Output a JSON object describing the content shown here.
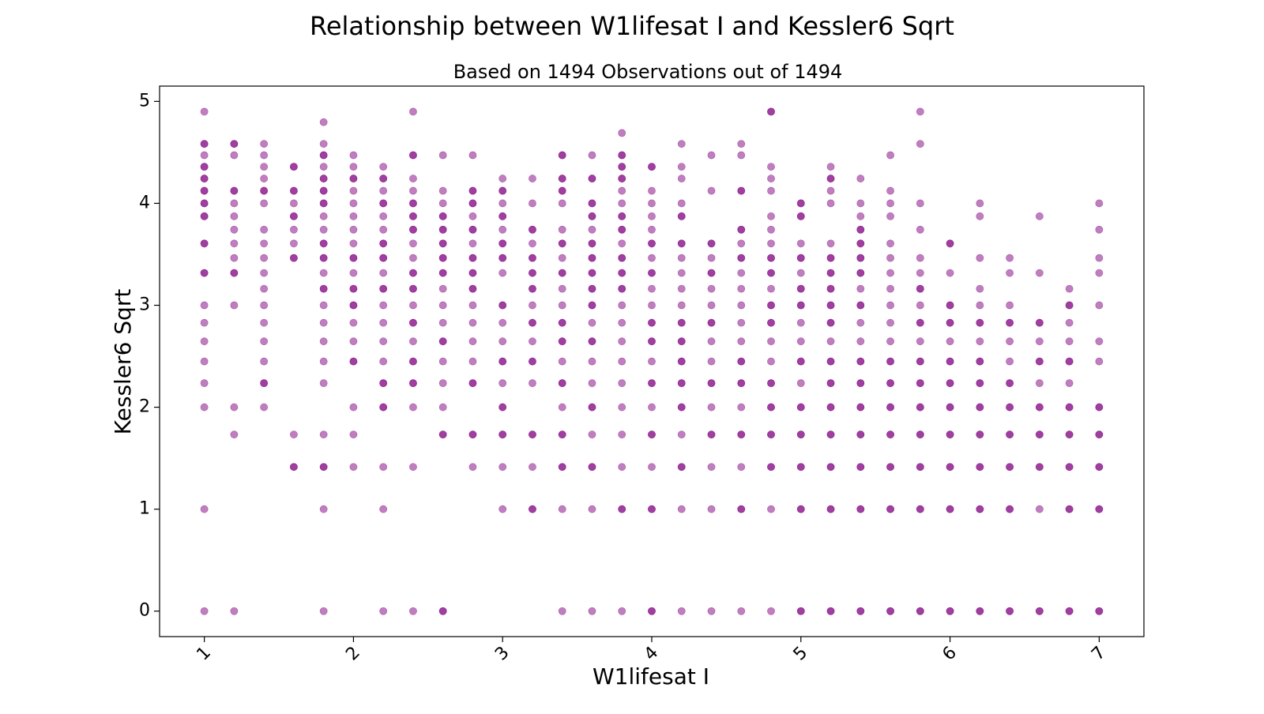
{
  "chart_data": {
    "type": "scatter",
    "title": "Relationship between W1lifesat I and Kessler6 Sqrt",
    "subtitle": "Based on 1494 Observations out of 1494",
    "xlabel": "W1lifesat I",
    "ylabel": "Kessler6 Sqrt",
    "xlim": [
      0.7,
      7.3
    ],
    "ylim": [
      -0.25,
      5.15
    ],
    "xticks": [
      1,
      2,
      3,
      4,
      5,
      6,
      7
    ],
    "yticks": [
      0,
      1,
      2,
      3,
      4,
      5
    ],
    "xtick_labels": [
      "1",
      "2",
      "3",
      "4",
      "5",
      "6",
      "7"
    ],
    "ytick_labels": [
      "0",
      "1",
      "2",
      "3",
      "4",
      "5"
    ],
    "x_tick_rotation": "45 degrees",
    "grid": false,
    "legend": "none",
    "marker_color": "#800080",
    "marker_alpha": 0.5,
    "columns": [
      {
        "x": 1.0,
        "y": [
          0,
          1,
          2,
          2.236,
          2.449,
          2.646,
          2.828,
          3,
          3.317,
          3.317,
          3.606,
          3.606,
          3.873,
          3.873,
          4,
          4,
          4.123,
          4.123,
          4.243,
          4.243,
          4.359,
          4.359,
          4.472,
          4.583,
          4.583,
          4.899
        ]
      },
      {
        "x": 1.2,
        "y": [
          0,
          1.732,
          2,
          3,
          3.317,
          3.317,
          3.464,
          3.606,
          3.742,
          3.873,
          4,
          4.123,
          4.123,
          4.472,
          4.583,
          4.583
        ]
      },
      {
        "x": 1.4,
        "y": [
          2,
          2.236,
          2.236,
          2.449,
          2.646,
          2.828,
          3,
          3.162,
          3.317,
          3.464,
          3.606,
          3.742,
          4,
          4.123,
          4.123,
          4.243,
          4.359,
          4.472,
          4.583
        ]
      },
      {
        "x": 1.6,
        "y": [
          1.414,
          1.414,
          1.732,
          3.464,
          3.464,
          3.606,
          3.742,
          3.873,
          3.873,
          4,
          4.123,
          4.123,
          4.359,
          4.359
        ]
      },
      {
        "x": 1.8,
        "y": [
          0,
          1,
          1.414,
          1.414,
          1.732,
          2.236,
          2.449,
          2.646,
          2.828,
          3,
          3.162,
          3.162,
          3.317,
          3.464,
          3.464,
          3.606,
          3.606,
          3.742,
          3.873,
          4,
          4,
          4.123,
          4.123,
          4.243,
          4.243,
          4.359,
          4.472,
          4.472,
          4.583,
          4.796
        ]
      },
      {
        "x": 2.0,
        "y": [
          1.414,
          1.732,
          2,
          2.449,
          2.449,
          2.646,
          2.828,
          3,
          3,
          3.162,
          3.162,
          3.317,
          3.464,
          3.464,
          3.606,
          3.742,
          3.873,
          4,
          4.123,
          4.243,
          4.243,
          4.359,
          4.472
        ]
      },
      {
        "x": 2.2,
        "y": [
          0,
          1,
          1.414,
          2,
          2,
          2.236,
          2.236,
          2.449,
          2.646,
          2.828,
          3,
          3.162,
          3.162,
          3.317,
          3.464,
          3.464,
          3.606,
          3.606,
          3.742,
          3.873,
          4,
          4,
          4.123,
          4.243,
          4.243,
          4.359
        ]
      },
      {
        "x": 2.4,
        "y": [
          0,
          1.414,
          2,
          2.236,
          2.236,
          2.449,
          2.449,
          2.646,
          2.828,
          2.828,
          3,
          3.162,
          3.162,
          3.317,
          3.317,
          3.464,
          3.606,
          3.742,
          3.742,
          3.873,
          3.873,
          4,
          4,
          4.123,
          4.243,
          4.472,
          4.472,
          4.899
        ]
      },
      {
        "x": 2.6,
        "y": [
          0,
          0,
          1.732,
          1.732,
          2,
          2.236,
          2.449,
          2.646,
          2.646,
          2.828,
          3,
          3.162,
          3.317,
          3.317,
          3.464,
          3.464,
          3.606,
          3.606,
          3.742,
          3.742,
          3.873,
          3.873,
          4,
          4.123,
          4.472
        ]
      },
      {
        "x": 2.8,
        "y": [
          1.414,
          1.732,
          1.732,
          2.236,
          2.236,
          2.449,
          2.646,
          2.828,
          3,
          3.162,
          3.162,
          3.317,
          3.317,
          3.464,
          3.464,
          3.606,
          3.742,
          3.742,
          3.873,
          4,
          4,
          4.123,
          4.123,
          4.472
        ]
      },
      {
        "x": 3.0,
        "y": [
          1,
          1.414,
          1.732,
          1.732,
          2,
          2,
          2.236,
          2.449,
          2.449,
          2.646,
          2.828,
          3,
          3,
          3.317,
          3.464,
          3.464,
          3.606,
          3.606,
          3.742,
          3.873,
          3.873,
          4,
          4.123,
          4.123,
          4.243
        ]
      },
      {
        "x": 3.2,
        "y": [
          1,
          1,
          1.414,
          1.732,
          1.732,
          2.236,
          2.449,
          2.449,
          2.646,
          2.828,
          2.828,
          3,
          3.162,
          3.162,
          3.317,
          3.317,
          3.464,
          3.464,
          3.606,
          3.742,
          3.742,
          4,
          4.243
        ]
      },
      {
        "x": 3.4,
        "y": [
          0,
          1,
          1.414,
          1.414,
          1.732,
          1.732,
          2,
          2.236,
          2.236,
          2.449,
          2.646,
          2.646,
          2.828,
          2.828,
          3,
          3.162,
          3.317,
          3.317,
          3.464,
          3.606,
          3.606,
          3.742,
          4,
          4.123,
          4.123,
          4.243,
          4.243,
          4.472,
          4.472
        ]
      },
      {
        "x": 3.6,
        "y": [
          0,
          1,
          1.414,
          1.414,
          1.732,
          2,
          2,
          2.236,
          2.449,
          2.646,
          2.646,
          2.828,
          3,
          3,
          3.162,
          3.162,
          3.317,
          3.317,
          3.464,
          3.464,
          3.606,
          3.606,
          3.742,
          3.873,
          3.873,
          4,
          4,
          4.243,
          4.243,
          4.472
        ]
      },
      {
        "x": 3.8,
        "y": [
          0,
          1,
          1,
          1.414,
          1.732,
          2,
          2.236,
          2.449,
          2.646,
          2.828,
          3,
          3.162,
          3.162,
          3.317,
          3.317,
          3.464,
          3.464,
          3.606,
          3.742,
          3.742,
          3.873,
          3.873,
          4,
          4.123,
          4.243,
          4.243,
          4.359,
          4.359,
          4.472,
          4.472,
          4.69
        ]
      },
      {
        "x": 4.0,
        "y": [
          0,
          0,
          1,
          1,
          1.414,
          1.732,
          1.732,
          2,
          2.236,
          2.236,
          2.449,
          2.646,
          2.646,
          2.828,
          2.828,
          3,
          3.162,
          3.317,
          3.317,
          3.464,
          3.606,
          3.606,
          3.742,
          3.873,
          4,
          4.123,
          4.359,
          4.359
        ]
      },
      {
        "x": 4.2,
        "y": [
          0,
          1,
          1.414,
          1.414,
          1.732,
          2,
          2,
          2.236,
          2.236,
          2.449,
          2.449,
          2.646,
          2.646,
          2.828,
          2.828,
          3,
          3.162,
          3.317,
          3.464,
          3.606,
          3.606,
          3.873,
          3.873,
          4,
          4.243,
          4.359,
          4.583
        ]
      },
      {
        "x": 4.4,
        "y": [
          0,
          1,
          1.414,
          1.732,
          1.732,
          2,
          2.236,
          2.236,
          2.449,
          2.646,
          2.828,
          2.828,
          3,
          3.162,
          3.317,
          3.317,
          3.464,
          3.606,
          3.606,
          4.123,
          4.472
        ]
      },
      {
        "x": 4.6,
        "y": [
          0,
          1,
          1,
          1.414,
          1.732,
          1.732,
          2,
          2.236,
          2.236,
          2.449,
          2.449,
          2.646,
          2.828,
          3,
          3.162,
          3.317,
          3.464,
          3.464,
          3.606,
          3.742,
          3.742,
          4.123,
          4.123,
          4.472,
          4.583
        ]
      },
      {
        "x": 4.8,
        "y": [
          0,
          1,
          1.414,
          1.414,
          1.732,
          1.732,
          2,
          2,
          2.236,
          2.236,
          2.449,
          2.646,
          2.828,
          2.828,
          3,
          3,
          3.162,
          3.317,
          3.317,
          3.464,
          3.464,
          3.606,
          3.742,
          3.873,
          4.123,
          4.243,
          4.359,
          4.899,
          4.899
        ]
      },
      {
        "x": 5.0,
        "y": [
          0,
          0,
          1,
          1,
          1.414,
          1.414,
          1.732,
          1.732,
          2,
          2,
          2.236,
          2.449,
          2.449,
          2.646,
          2.828,
          3,
          3,
          3.162,
          3.162,
          3.317,
          3.464,
          3.464,
          3.606,
          3.873,
          3.873,
          4,
          4
        ]
      },
      {
        "x": 5.2,
        "y": [
          0,
          0,
          1,
          1,
          1.414,
          1.414,
          1.732,
          1.732,
          2,
          2,
          2.236,
          2.236,
          2.449,
          2.449,
          2.646,
          2.828,
          2.828,
          3,
          3,
          3.162,
          3.162,
          3.317,
          3.317,
          3.464,
          3.464,
          3.606,
          4,
          4.123,
          4.243,
          4.243,
          4.359
        ]
      },
      {
        "x": 5.4,
        "y": [
          0,
          0,
          1,
          1,
          1.414,
          1.414,
          1.732,
          1.732,
          2,
          2,
          2.236,
          2.236,
          2.449,
          2.449,
          2.646,
          2.828,
          3,
          3,
          3.162,
          3.317,
          3.317,
          3.464,
          3.464,
          3.606,
          3.606,
          3.742,
          3.742,
          3.873,
          4,
          4.243
        ]
      },
      {
        "x": 5.6,
        "y": [
          0,
          0,
          1,
          1,
          1.414,
          1.414,
          1.732,
          1.732,
          2,
          2,
          2.236,
          2.236,
          2.449,
          2.449,
          2.646,
          2.828,
          3,
          3.162,
          3.317,
          3.464,
          3.606,
          3.873,
          4,
          4.123,
          4.472
        ]
      },
      {
        "x": 5.8,
        "y": [
          0,
          0,
          1,
          1,
          1.414,
          1.414,
          1.732,
          1.732,
          2,
          2,
          2.236,
          2.236,
          2.449,
          2.449,
          2.646,
          2.828,
          2.828,
          3,
          3.162,
          3.162,
          3.317,
          3.464,
          3.742,
          4,
          4.583,
          4.899
        ]
      },
      {
        "x": 6.0,
        "y": [
          0,
          0,
          1,
          1,
          1.414,
          1.414,
          1.732,
          1.732,
          2,
          2,
          2.236,
          2.236,
          2.449,
          2.449,
          2.646,
          2.828,
          2.828,
          3,
          3,
          3.317,
          3.606,
          3.606
        ]
      },
      {
        "x": 6.2,
        "y": [
          0,
          0,
          1,
          1,
          1.414,
          1.414,
          1.732,
          1.732,
          2,
          2,
          2.236,
          2.236,
          2.449,
          2.449,
          2.646,
          2.828,
          2.828,
          3,
          3.162,
          3.464,
          3.873,
          4
        ]
      },
      {
        "x": 6.4,
        "y": [
          0,
          0,
          1,
          1,
          1.414,
          1.414,
          1.732,
          1.732,
          2,
          2,
          2.236,
          2.236,
          2.449,
          2.646,
          2.828,
          2.828,
          3,
          3.317,
          3.464
        ]
      },
      {
        "x": 6.6,
        "y": [
          0,
          0,
          1,
          1.414,
          1.414,
          1.732,
          1.732,
          2,
          2,
          2.236,
          2.449,
          2.449,
          2.646,
          2.828,
          2.828,
          3.317,
          3.873
        ]
      },
      {
        "x": 6.8,
        "y": [
          0,
          0,
          1,
          1,
          1.414,
          1.414,
          1.732,
          1.732,
          2,
          2,
          2.236,
          2.449,
          2.449,
          2.646,
          2.828,
          3,
          3,
          3.162
        ]
      },
      {
        "x": 7.0,
        "y": [
          0,
          0,
          1,
          1,
          1.414,
          1.414,
          1.732,
          1.732,
          2,
          2,
          2.449,
          2.646,
          3,
          3.317,
          3.464,
          3.742,
          4
        ]
      }
    ]
  }
}
